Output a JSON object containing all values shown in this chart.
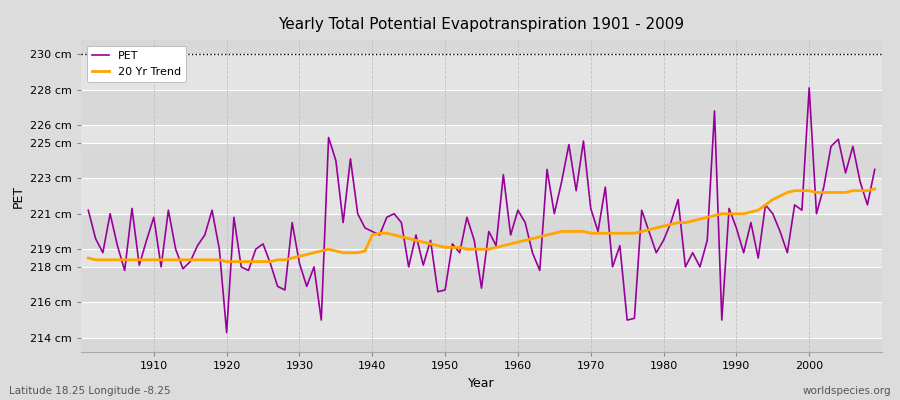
{
  "title": "Yearly Total Potential Evapotranspiration 1901 - 2009",
  "xlabel": "Year",
  "ylabel": "PET",
  "bottom_left_label": "Latitude 18.25 Longitude -8.25",
  "bottom_right_label": "worldspecies.org",
  "pet_color": "#990099",
  "trend_color": "#FFA500",
  "fig_facecolor": "#DCDCDC",
  "plot_facecolor": "#E8E8E8",
  "hline_y": 230,
  "ylim": [
    213.2,
    230.8
  ],
  "yticks": [
    214,
    216,
    218,
    219,
    221,
    223,
    225,
    226,
    228,
    230
  ],
  "ytick_labels": [
    "214 cm",
    "216 cm",
    "218 cm",
    "219 cm",
    "221 cm",
    "223 cm",
    "225 cm",
    "226 cm",
    "228 cm",
    "230 cm"
  ],
  "xlim": [
    1900,
    2010
  ],
  "xticks": [
    1910,
    1920,
    1930,
    1940,
    1950,
    1960,
    1970,
    1980,
    1990,
    2000
  ],
  "years": [
    1901,
    1902,
    1903,
    1904,
    1905,
    1906,
    1907,
    1908,
    1909,
    1910,
    1911,
    1912,
    1913,
    1914,
    1915,
    1916,
    1917,
    1918,
    1919,
    1920,
    1921,
    1922,
    1923,
    1924,
    1925,
    1926,
    1927,
    1928,
    1929,
    1930,
    1931,
    1932,
    1933,
    1934,
    1935,
    1936,
    1937,
    1938,
    1939,
    1940,
    1941,
    1942,
    1943,
    1944,
    1945,
    1946,
    1947,
    1948,
    1949,
    1950,
    1951,
    1952,
    1953,
    1954,
    1955,
    1956,
    1957,
    1958,
    1959,
    1960,
    1961,
    1962,
    1963,
    1964,
    1965,
    1966,
    1967,
    1968,
    1969,
    1970,
    1971,
    1972,
    1973,
    1974,
    1975,
    1976,
    1977,
    1978,
    1979,
    1980,
    1981,
    1982,
    1983,
    1984,
    1985,
    1986,
    1987,
    1988,
    1989,
    1990,
    1991,
    1992,
    1993,
    1994,
    1995,
    1996,
    1997,
    1998,
    1999,
    2000,
    2001,
    2002,
    2003,
    2004,
    2005,
    2006,
    2007,
    2008,
    2009
  ],
  "pet_values": [
    221.2,
    219.6,
    218.8,
    221.0,
    219.2,
    217.8,
    221.3,
    218.1,
    219.5,
    220.8,
    218.0,
    221.2,
    219.0,
    217.9,
    218.3,
    219.2,
    219.8,
    221.2,
    219.0,
    214.3,
    220.8,
    218.0,
    217.8,
    219.0,
    219.3,
    218.2,
    216.9,
    216.7,
    220.5,
    218.2,
    216.9,
    218.0,
    215.0,
    225.3,
    224.0,
    220.5,
    224.1,
    221.0,
    220.2,
    220.0,
    219.8,
    220.8,
    221.0,
    220.5,
    218.0,
    219.8,
    218.1,
    219.5,
    216.6,
    216.7,
    219.3,
    218.8,
    220.8,
    219.5,
    216.8,
    220.0,
    219.2,
    223.2,
    219.8,
    221.2,
    220.5,
    218.8,
    217.8,
    223.5,
    221.0,
    222.8,
    224.9,
    222.3,
    225.1,
    221.3,
    220.0,
    222.5,
    218.0,
    219.2,
    215.0,
    215.1,
    221.2,
    220.0,
    218.8,
    219.5,
    220.5,
    221.8,
    218.0,
    218.8,
    218.0,
    219.5,
    226.8,
    215.0,
    221.3,
    220.2,
    218.8,
    220.5,
    218.5,
    221.5,
    221.0,
    220.0,
    218.8,
    221.5,
    221.2,
    228.1,
    221.0,
    222.5,
    224.8,
    225.2,
    223.3,
    224.8,
    222.8,
    221.5,
    223.5
  ],
  "trend_values": [
    218.5,
    218.4,
    218.4,
    218.4,
    218.4,
    218.4,
    218.4,
    218.4,
    218.4,
    218.4,
    218.4,
    218.4,
    218.4,
    218.4,
    218.4,
    218.4,
    218.4,
    218.4,
    218.4,
    218.3,
    218.3,
    218.3,
    218.3,
    218.3,
    218.3,
    218.3,
    218.4,
    218.4,
    218.5,
    218.6,
    218.7,
    218.8,
    218.9,
    219.0,
    218.9,
    218.8,
    218.8,
    218.8,
    218.9,
    219.8,
    219.9,
    219.9,
    219.8,
    219.7,
    219.6,
    219.5,
    219.4,
    219.3,
    219.2,
    219.1,
    219.1,
    219.1,
    219.0,
    219.0,
    219.0,
    219.0,
    219.1,
    219.2,
    219.3,
    219.4,
    219.5,
    219.6,
    219.7,
    219.8,
    219.9,
    220.0,
    220.0,
    220.0,
    220.0,
    219.9,
    219.9,
    219.9,
    219.9,
    219.9,
    219.9,
    219.9,
    220.0,
    220.1,
    220.2,
    220.3,
    220.4,
    220.5,
    220.5,
    220.6,
    220.7,
    220.8,
    220.9,
    221.0,
    221.0,
    221.0,
    221.0,
    221.1,
    221.2,
    221.5,
    221.8,
    222.0,
    222.2,
    222.3,
    222.3,
    222.3,
    222.2,
    222.2,
    222.2,
    222.2,
    222.2,
    222.3,
    222.3,
    222.3,
    222.4
  ],
  "band_colors": [
    "#D8D8D8",
    "#E4E4E4"
  ]
}
